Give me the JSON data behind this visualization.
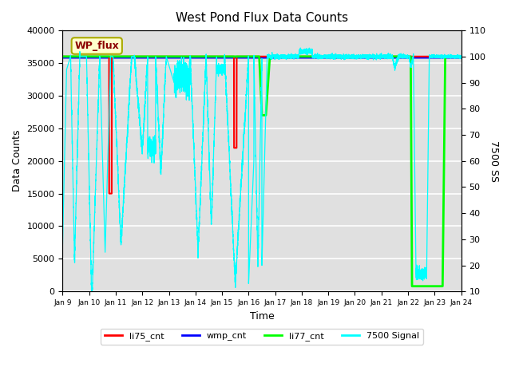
{
  "title": "West Pond Flux Data Counts",
  "xlabel": "Time",
  "ylabel_left": "Data Counts",
  "ylabel_right": "7500 SS",
  "ylim_left": [
    0,
    40000
  ],
  "ylim_right": [
    10,
    110
  ],
  "background_color": "#e0e0e0",
  "legend_labels": [
    "li75_cnt",
    "wmp_cnt",
    "li77_cnt",
    "7500 Signal"
  ],
  "legend_colors": [
    "red",
    "blue",
    "lime",
    "cyan"
  ],
  "annotation_text": "WP_flux",
  "x_tick_labels": [
    "Jan 9",
    "Jan 10",
    "Jan 11",
    "Jan 12",
    "Jan 13",
    "Jan 14",
    "Jan 15",
    "Jan 16",
    "Jan 17",
    "Jan 18",
    "Jan 19",
    "Jan 20",
    "Jan 21",
    "Jan 22",
    "Jan 23",
    "Jan 24"
  ],
  "grid_color": "white",
  "li75_color": "red",
  "wmp_color": "blue",
  "li77_color": "#00ff00",
  "signal7500_color": "cyan",
  "title_fontsize": 11
}
